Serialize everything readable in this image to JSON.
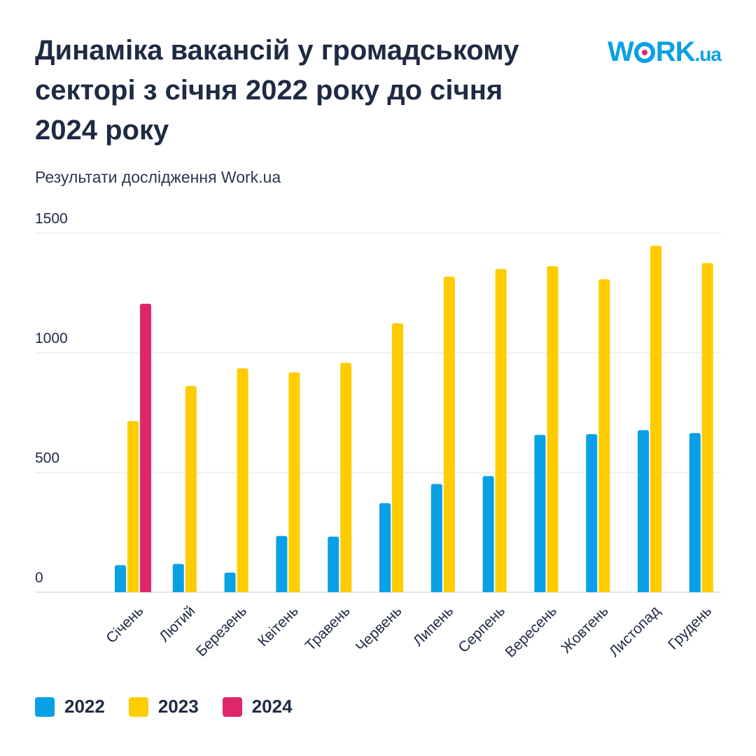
{
  "header": {
    "title": "Динаміка вакансій у громадському секторі з січня 2022 року до січня 2024 року",
    "subtitle": "Результати дослідження Work.ua"
  },
  "logo": {
    "part1": "W",
    "part2": "RK",
    "part3": ".ua",
    "color": "#0aa0e6",
    "dot_color": "#e0266b"
  },
  "chart_data": {
    "type": "bar",
    "title": "Динаміка вакансій у громадському секторі з січня 2022 року до січня 2024 року",
    "xlabel": "",
    "ylabel": "",
    "ylim": [
      0,
      1500
    ],
    "yticks": [
      0,
      500,
      1000,
      1500
    ],
    "grid": true,
    "legend_position": "bottom-left",
    "categories": [
      "Січень",
      "Лютий",
      "Березень",
      "Квітень",
      "Травень",
      "Червень",
      "Липень",
      "Серпень",
      "Вересень",
      "Жовтень",
      "Листопад",
      "Грудень"
    ],
    "series": [
      {
        "name": "2022",
        "color": "#0aa0e6",
        "values": [
          113,
          118,
          82,
          235,
          232,
          372,
          452,
          485,
          657,
          660,
          677,
          665
        ]
      },
      {
        "name": "2023",
        "color": "#ffcc00",
        "values": [
          715,
          862,
          935,
          918,
          958,
          1123,
          1318,
          1350,
          1362,
          1307,
          1447,
          1375
        ]
      },
      {
        "name": "2024",
        "color": "#e0266b",
        "values": [
          1205,
          null,
          null,
          null,
          null,
          null,
          null,
          null,
          null,
          null,
          null,
          null
        ]
      }
    ]
  }
}
